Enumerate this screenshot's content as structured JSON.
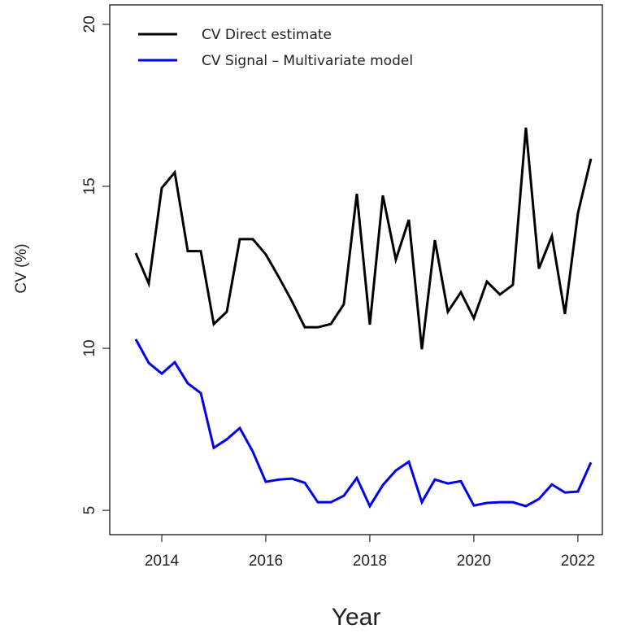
{
  "chart_data": {
    "type": "line",
    "x_label": "Year",
    "y_label": "CV (%)",
    "x": [
      2013.5,
      2013.75,
      2014,
      2014.25,
      2014.5,
      2014.75,
      2015,
      2015.25,
      2015.5,
      2015.75,
      2016,
      2016.25,
      2016.5,
      2016.75,
      2017,
      2017.25,
      2017.5,
      2017.75,
      2018,
      2018.25,
      2018.5,
      2018.75,
      2019,
      2019.25,
      2019.5,
      2019.75,
      2020,
      2020.25,
      2020.5,
      2020.75,
      2021,
      2021.25,
      2021.5,
      2021.75,
      2022,
      2022.25
    ],
    "series": [
      {
        "name": "CV Direct estimate",
        "color": "#000000",
        "values": [
          12.94,
          12.0,
          14.95,
          15.43,
          13.0,
          13.0,
          10.75,
          11.13,
          13.37,
          13.37,
          12.9,
          12.2,
          11.46,
          10.65,
          10.65,
          10.75,
          11.36,
          14.77,
          10.73,
          14.72,
          12.74,
          13.97,
          9.97,
          13.34,
          11.13,
          11.73,
          10.93,
          12.06,
          11.66,
          11.96,
          16.81,
          12.46,
          13.47,
          11.06,
          14.17,
          15.85
        ]
      },
      {
        "name": "CV Signal – Multivariate model",
        "color": "#0000ee",
        "values": [
          10.28,
          9.55,
          9.22,
          9.57,
          8.92,
          8.62,
          6.93,
          7.19,
          7.54,
          6.81,
          5.88,
          5.95,
          5.98,
          5.85,
          5.25,
          5.25,
          5.45,
          6.0,
          5.13,
          5.78,
          6.23,
          6.5,
          5.25,
          5.95,
          5.83,
          5.9,
          5.15,
          5.23,
          5.25,
          5.25,
          5.13,
          5.35,
          5.8,
          5.55,
          5.58,
          6.48
        ]
      }
    ],
    "xlim": [
      2013,
      2022.47
    ],
    "xticks": [
      2014,
      2016,
      2018,
      2020,
      2022
    ],
    "ylim": [
      4.25,
      20.6
    ],
    "yticks": [
      5,
      10,
      15,
      20
    ],
    "grid": false,
    "legend": "top-left"
  }
}
